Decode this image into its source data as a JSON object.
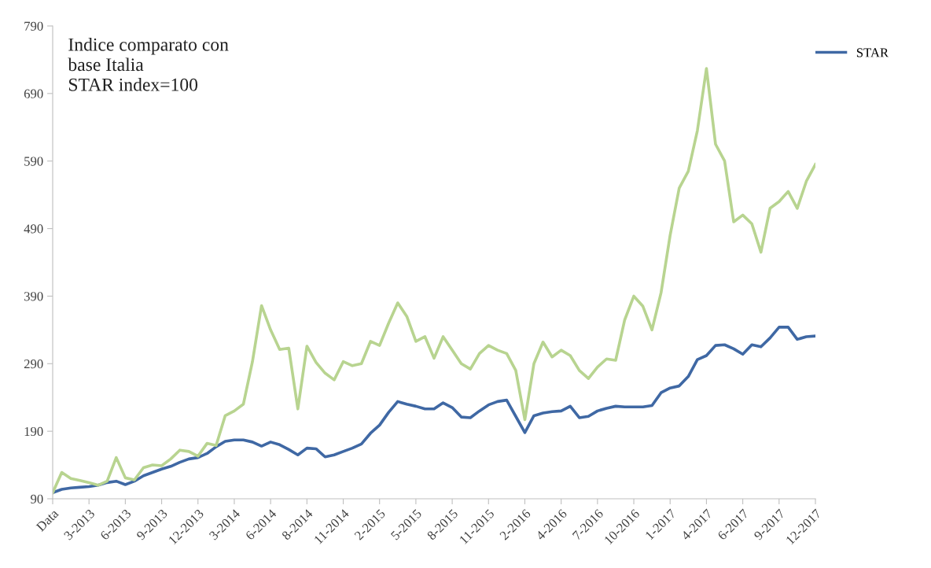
{
  "chart_data": {
    "type": "line",
    "title": "Indice comparato con\nbase Italia\nSTAR index=100",
    "categories": [
      "Data",
      null,
      null,
      null,
      "3-2013",
      null,
      null,
      null,
      "6-2013",
      null,
      null,
      null,
      "9-2013",
      null,
      null,
      null,
      "12-2013",
      null,
      null,
      null,
      "3-2014",
      null,
      null,
      null,
      "6-2014",
      null,
      null,
      null,
      "8-2014",
      null,
      null,
      null,
      "11-2014",
      null,
      null,
      null,
      "2-2015",
      null,
      null,
      null,
      "5-2015",
      null,
      null,
      null,
      "8-2015",
      null,
      null,
      null,
      "11-2015",
      null,
      null,
      null,
      "2-2016",
      null,
      null,
      null,
      "4-2016",
      null,
      null,
      null,
      "7-2016",
      null,
      null,
      null,
      "10-2016",
      null,
      null,
      null,
      "1-2017",
      null,
      null,
      null,
      "4-2017",
      null,
      null,
      null,
      "6-2017",
      null,
      null,
      null,
      "9-2017",
      null,
      null,
      null,
      "12-2017"
    ],
    "ylim": [
      90,
      790
    ],
    "yticks": [
      90,
      190,
      290,
      390,
      490,
      590,
      690,
      790
    ],
    "legend": "top right",
    "marker": "none",
    "line_style": "solid",
    "series": [
      {
        "name": "STAR",
        "color": "#3f68a4",
        "values": [
          99,
          104,
          106,
          107,
          108,
          110,
          114,
          116,
          111,
          116,
          124,
          129,
          134,
          138,
          144,
          149,
          151,
          157,
          167,
          175,
          177,
          177,
          174,
          168,
          174,
          170,
          163,
          155,
          165,
          164,
          152,
          155,
          160,
          165,
          171,
          187,
          199,
          218,
          234,
          230,
          227,
          223,
          223,
          232,
          225,
          211,
          210,
          220,
          229,
          234,
          236,
          212,
          188,
          213,
          217,
          219,
          220,
          227,
          210,
          212,
          220,
          224,
          227,
          226,
          226,
          226,
          228,
          247,
          254,
          257,
          271,
          296,
          302,
          317,
          318,
          312,
          304,
          318,
          315,
          328,
          344,
          344,
          326,
          330,
          331
        ]
      },
      {
        "color": "#b8d490",
        "values": [
          99,
          129,
          120,
          117,
          114,
          110,
          116,
          151,
          121,
          118,
          136,
          140,
          139,
          149,
          162,
          160,
          153,
          172,
          169,
          213,
          220,
          230,
          293,
          376,
          340,
          311,
          313,
          223,
          316,
          292,
          276,
          266,
          293,
          287,
          290,
          323,
          317,
          350,
          380,
          360,
          323,
          330,
          298,
          330,
          310,
          290,
          282,
          305,
          317,
          310,
          305,
          280,
          207,
          290,
          322,
          300,
          310,
          302,
          280,
          268,
          285,
          297,
          295,
          355,
          390,
          375,
          340,
          395,
          480,
          550,
          575,
          635,
          727,
          615,
          590,
          500,
          510,
          497,
          455,
          520,
          530,
          545,
          520,
          560,
          585
        ]
      }
    ]
  }
}
